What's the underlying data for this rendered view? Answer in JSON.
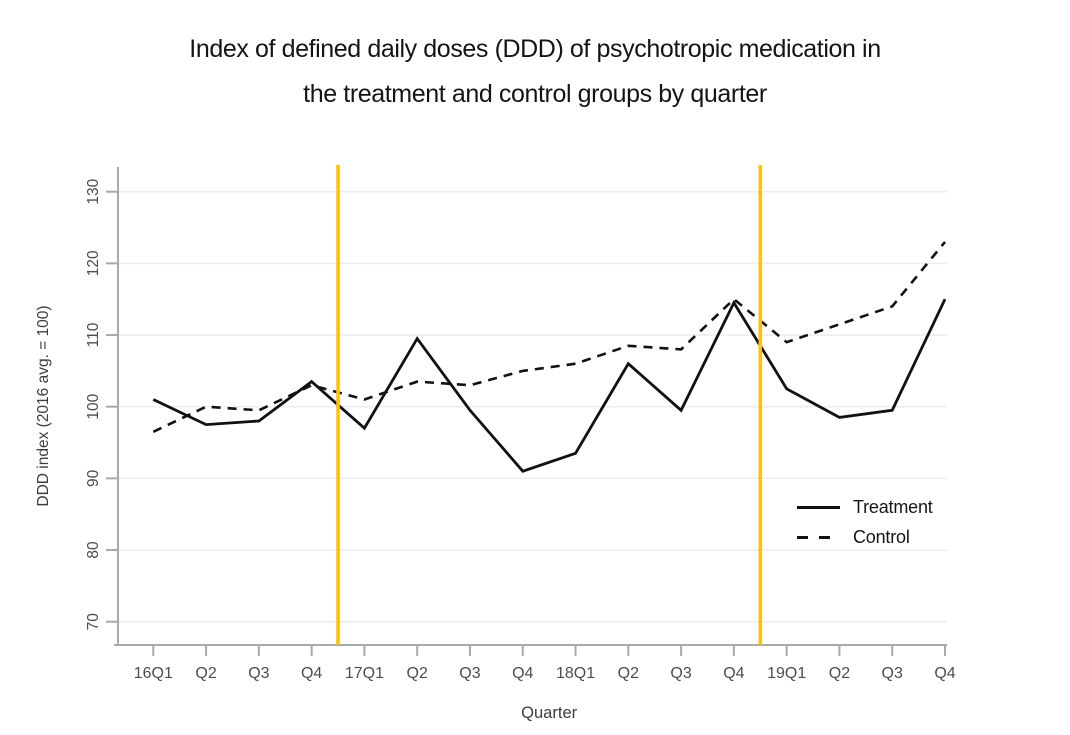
{
  "chart_data": {
    "type": "line",
    "title": "Index of defined daily doses (DDD) of psychotropic medication in the treatment and control groups by quarter",
    "title_lines": [
      "Index of defined daily doses (DDD) of psychotropic medication in",
      "the treatment and control groups by quarter"
    ],
    "xlabel": "Quarter",
    "ylabel": "DDD index (2016 avg. = 100)",
    "categories": [
      "16Q1",
      "Q2",
      "Q3",
      "Q4",
      "17Q1",
      "Q2",
      "Q3",
      "Q4",
      "18Q1",
      "Q2",
      "Q3",
      "Q4",
      "19Q1",
      "Q2",
      "Q3",
      "Q4"
    ],
    "yticks": [
      70,
      80,
      90,
      100,
      110,
      120,
      130
    ],
    "ylim": [
      67,
      133
    ],
    "grid": true,
    "legend_position": "right-middle",
    "series": [
      {
        "name": "Treatment",
        "style": "solid",
        "values": [
          101,
          97.5,
          98,
          103.5,
          97,
          109.5,
          99.5,
          91,
          93.5,
          106,
          99.5,
          114.5,
          102.5,
          98.5,
          99.5,
          115
        ]
      },
      {
        "name": "Control",
        "style": "dashed",
        "values": [
          96.5,
          100,
          99.5,
          103,
          101,
          103.5,
          103,
          105,
          106,
          108.5,
          108,
          115,
          109,
          111.5,
          114,
          123
        ]
      }
    ],
    "vlines": {
      "description": [
        "between 16Q4 and 17Q1",
        "between 18Q4 and 19Q1"
      ],
      "x_index_positions": [
        3.5,
        11.5
      ],
      "color": "#FFC107"
    },
    "colors": {
      "line": "#111111",
      "axis": "#a9a9a9",
      "grid": "#ededed",
      "tick": "#4d4d4d",
      "label": "#3d3d3d",
      "vline": "#FFC107",
      "background": "#ffffff"
    }
  }
}
